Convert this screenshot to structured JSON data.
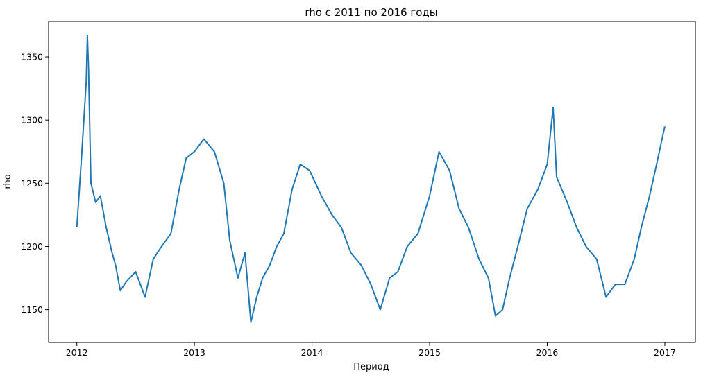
{
  "chart_data": {
    "type": "line",
    "title": "rho с 2011 по 2016 годы",
    "xlabel": "Период",
    "ylabel": "rho",
    "xlim": [
      2011.76,
      2017.26
    ],
    "ylim": [
      1124,
      1378
    ],
    "xticks": [
      2012,
      2013,
      2014,
      2015,
      2016,
      2017
    ],
    "xtick_labels": [
      "2012",
      "2013",
      "2014",
      "2015",
      "2016",
      "2017"
    ],
    "yticks": [
      1150,
      1200,
      1250,
      1300,
      1350
    ],
    "ytick_labels": [
      "1150",
      "1200",
      "1250",
      "1300",
      "1350"
    ],
    "grid": false,
    "legend": "none",
    "series": [
      {
        "color": "#1f77b4",
        "x": [
          2012.0,
          2012.04,
          2012.08,
          2012.09,
          2012.1,
          2012.12,
          2012.16,
          2012.2,
          2012.25,
          2012.3,
          2012.33,
          2012.37,
          2012.42,
          2012.5,
          2012.58,
          2012.65,
          2012.72,
          2012.8,
          2012.87,
          2012.93,
          2013.0,
          2013.08,
          2013.17,
          2013.25,
          2013.3,
          2013.37,
          2013.43,
          2013.48,
          2013.53,
          2013.58,
          2013.64,
          2013.7,
          2013.76,
          2013.83,
          2013.9,
          2013.98,
          2014.08,
          2014.17,
          2014.25,
          2014.33,
          2014.42,
          2014.5,
          2014.58,
          2014.66,
          2014.73,
          2014.81,
          2014.9,
          2015.0,
          2015.08,
          2015.17,
          2015.25,
          2015.33,
          2015.42,
          2015.5,
          2015.56,
          2015.62,
          2015.68,
          2015.75,
          2015.83,
          2015.92,
          2016.0,
          2016.05,
          2016.08,
          2016.17,
          2016.25,
          2016.33,
          2016.42,
          2016.5,
          2016.58,
          2016.66,
          2016.74,
          2016.8,
          2016.87,
          2016.93,
          2017.0
        ],
        "y": [
          1215,
          1270,
          1330,
          1367,
          1340,
          1250,
          1235,
          1240,
          1215,
          1195,
          1185,
          1165,
          1172,
          1180,
          1160,
          1190,
          1200,
          1210,
          1245,
          1270,
          1275,
          1285,
          1275,
          1250,
          1205,
          1175,
          1195,
          1140,
          1160,
          1175,
          1185,
          1200,
          1210,
          1245,
          1265,
          1260,
          1240,
          1225,
          1215,
          1195,
          1185,
          1170,
          1150,
          1175,
          1180,
          1200,
          1210,
          1240,
          1275,
          1260,
          1230,
          1215,
          1190,
          1175,
          1145,
          1150,
          1175,
          1200,
          1230,
          1245,
          1265,
          1310,
          1255,
          1235,
          1215,
          1200,
          1190,
          1160,
          1170,
          1170,
          1190,
          1215,
          1240,
          1265,
          1295
        ]
      }
    ]
  }
}
